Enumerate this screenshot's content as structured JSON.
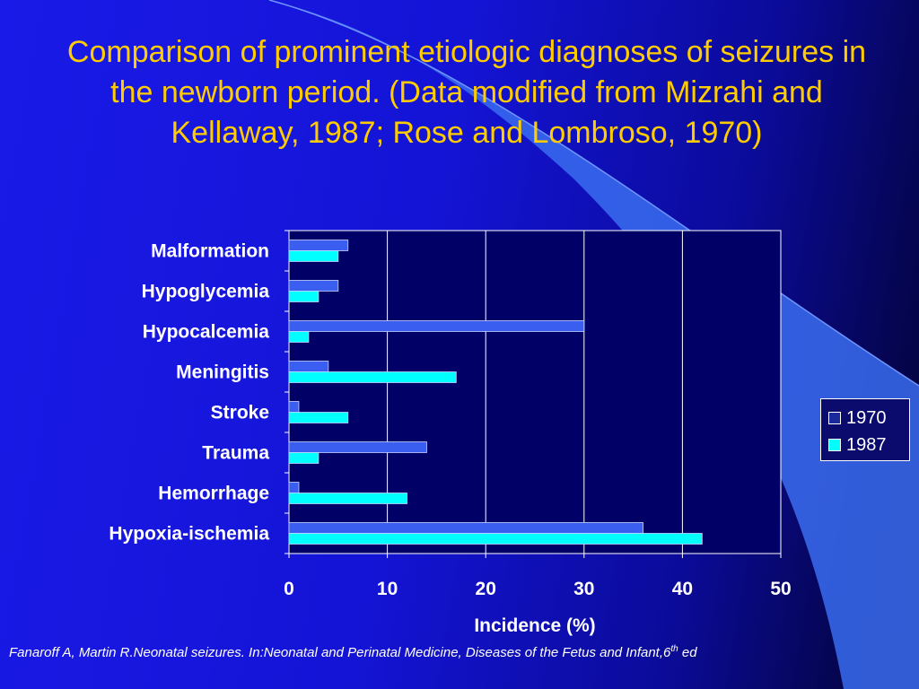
{
  "title": "Comparison of prominent etiologic diagnoses of seizures in the newborn period. (Data modified from Mizrahi and Kellaway, 1987; Rose and Lombroso, 1970)",
  "footer": {
    "text": "Fanaroff A, Martin R.Neonatal seizures. In:Neonatal and Perinatal Medicine, Diseases of the Fetus and Infant,6",
    "superscript": "th",
    "tail": " ed"
  },
  "chart_data": {
    "type": "bar",
    "orientation": "horizontal",
    "categories": [
      "Malformation",
      "Hypoglycemia",
      "Hypocalcemia",
      "Meningitis",
      "Stroke",
      "Trauma",
      "Hemorrhage",
      "Hypoxia-ischemia"
    ],
    "series": [
      {
        "name": "1970",
        "color": "#3a5ef0",
        "values": [
          6,
          5,
          30,
          4,
          1,
          14,
          1,
          36
        ]
      },
      {
        "name": "1987",
        "color": "#00ffff",
        "values": [
          5,
          3,
          2,
          17,
          6,
          3,
          12,
          42
        ]
      }
    ],
    "xlabel": "Incidence (%)",
    "xlim": [
      0,
      50
    ],
    "xticks": [
      0,
      10,
      20,
      30,
      40,
      50
    ],
    "grid": true,
    "legend_position": "right"
  },
  "colors": {
    "title": "#ffcc00",
    "plot_background": "#000066",
    "text": "#ffffff"
  }
}
